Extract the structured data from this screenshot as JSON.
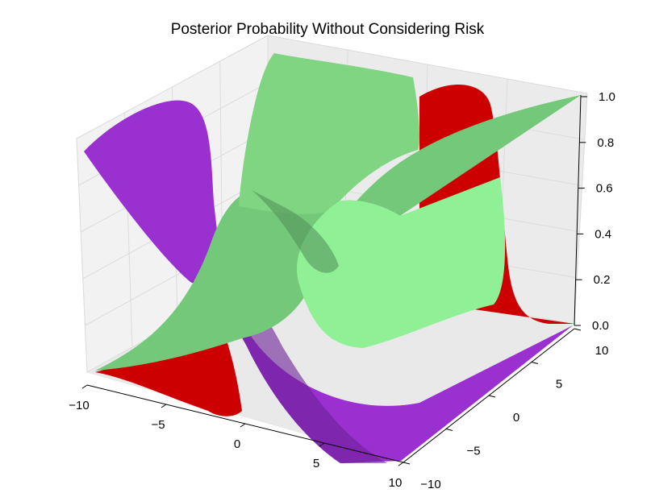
{
  "chart_data": {
    "type": "surface3d",
    "title": "Posterior Probability Without Considering Risk",
    "xlabel": "",
    "ylabel": "",
    "zlabel": "",
    "xlim": [
      -10,
      10
    ],
    "ylim": [
      -10,
      10
    ],
    "zlim": [
      0,
      1.0
    ],
    "x_ticks": [
      "−10",
      "−5",
      "0",
      "5",
      "10"
    ],
    "y_ticks": [
      "−10",
      "−5",
      "0",
      "5",
      "10"
    ],
    "z_ticks": [
      "0.0",
      "0.2",
      "0.4",
      "0.6",
      "0.8",
      "1.0"
    ],
    "grid": true,
    "series": [
      {
        "color": "#9b30d0",
        "values": {
          "peak_side": "low y",
          "profile": "sigmoid across y",
          "max": 1.0,
          "min": 0.0
        }
      },
      {
        "color": "#cc0000",
        "values": {
          "peak_side": "high y",
          "profile": "bump along y",
          "max": 1.0,
          "min": 0.0
        }
      },
      {
        "color": "#7fdd8a",
        "values": {
          "peak_side": "centre",
          "profile": "ridge near y=0",
          "max": 1.0,
          "min": 0.0
        }
      }
    ]
  }
}
